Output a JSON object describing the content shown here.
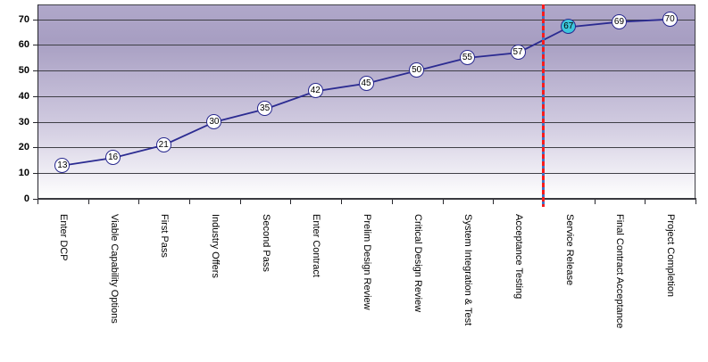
{
  "chart_data": {
    "type": "line",
    "title": "",
    "categories": [
      "Enter DCP",
      "Viable Capability Options",
      "First Pass",
      "Industry Offers",
      "Second Pass",
      "Enter Contract",
      "Prelim Design Review",
      "Critical Design Review",
      "System Integration & Test",
      "Acceptance Testing",
      "Service Release",
      "Final Contract Acceptance",
      "Project Completion"
    ],
    "values": [
      13,
      16,
      21,
      30,
      35,
      42,
      45,
      50,
      55,
      57,
      67,
      69,
      70
    ],
    "data_labels_shown_in_markers": true,
    "yticks": [
      0,
      10,
      20,
      30,
      40,
      50,
      60,
      70
    ],
    "ylim": [
      0,
      75
    ],
    "xlabel": "",
    "ylabel": "",
    "grid": true,
    "legend": "none",
    "highlight": {
      "index": 10,
      "category": "Service Release",
      "value": 67
    },
    "milestone_line": {
      "at_boundary_index": 10,
      "between": [
        "Acceptance Testing",
        "Service Release"
      ],
      "style": "dashed",
      "dash_color": "#f81c1c",
      "base_color": "#3e74c6"
    },
    "colors": {
      "series_line": "#2b2b91",
      "marker_fill": "#ffffff",
      "marker_border": "#28288e",
      "marker_text": "#000000",
      "highlight_fill": "#3cc6dc",
      "plot_gradient_top": "#a79ec2",
      "plot_gradient_bottom": "#ffffff",
      "gridline": "#3f3f46",
      "axis": "#26262c",
      "label_text": "#000000"
    }
  }
}
